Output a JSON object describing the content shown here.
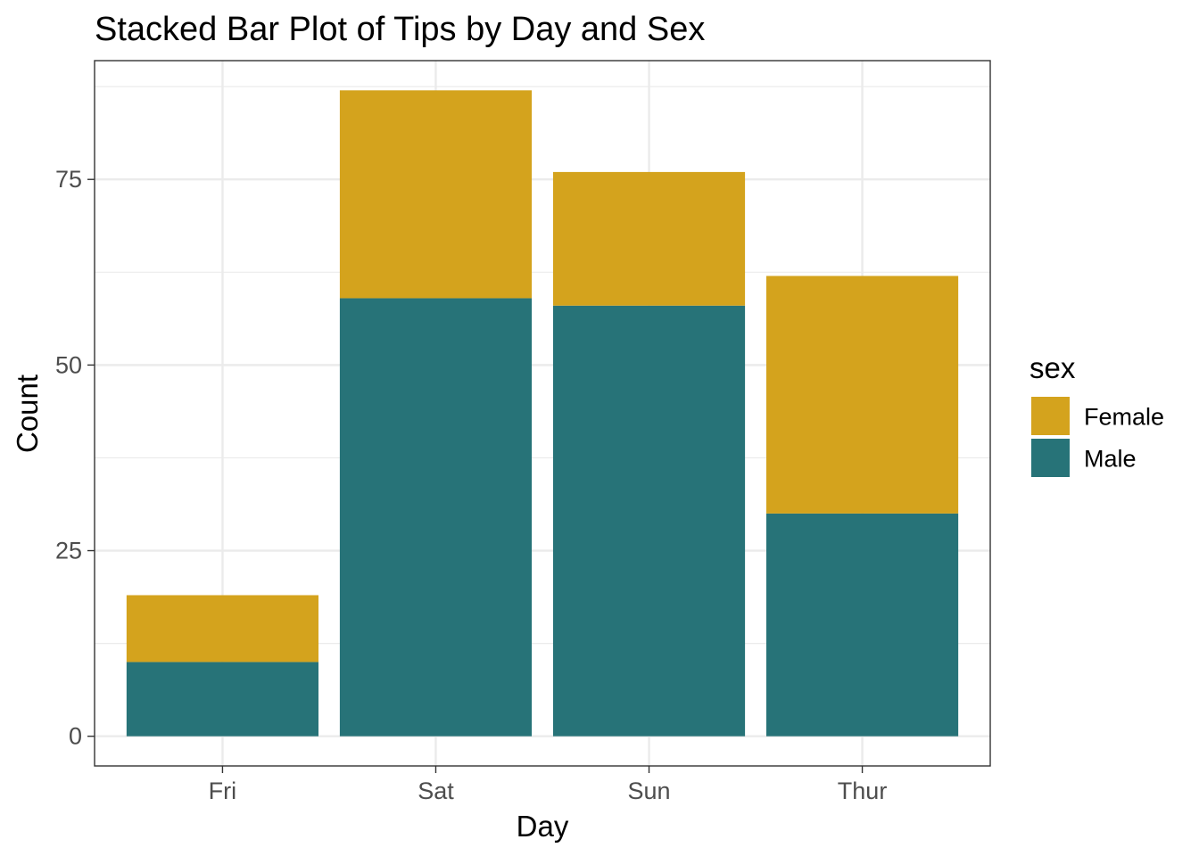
{
  "chart_data": {
    "type": "bar",
    "stacked": true,
    "title": "Stacked Bar Plot of Tips by Day and Sex",
    "xlabel": "Day",
    "ylabel": "Count",
    "categories": [
      "Fri",
      "Sat",
      "Sun",
      "Thur"
    ],
    "series": [
      {
        "name": "Male",
        "color": "#277378",
        "values": [
          10,
          59,
          58,
          30
        ]
      },
      {
        "name": "Female",
        "color": "#D4A31D",
        "values": [
          9,
          28,
          18,
          32
        ]
      }
    ],
    "ylim": [
      -4,
      91
    ],
    "yticks": [
      0,
      25,
      50,
      75
    ],
    "ytick_labels": [
      "0",
      "25",
      "50",
      "75"
    ],
    "grid": true,
    "legend": {
      "title": "sex",
      "placement": "right",
      "entries": [
        {
          "label": "Female",
          "color": "#D4A31D"
        },
        {
          "label": "Male",
          "color": "#277378"
        }
      ]
    }
  }
}
